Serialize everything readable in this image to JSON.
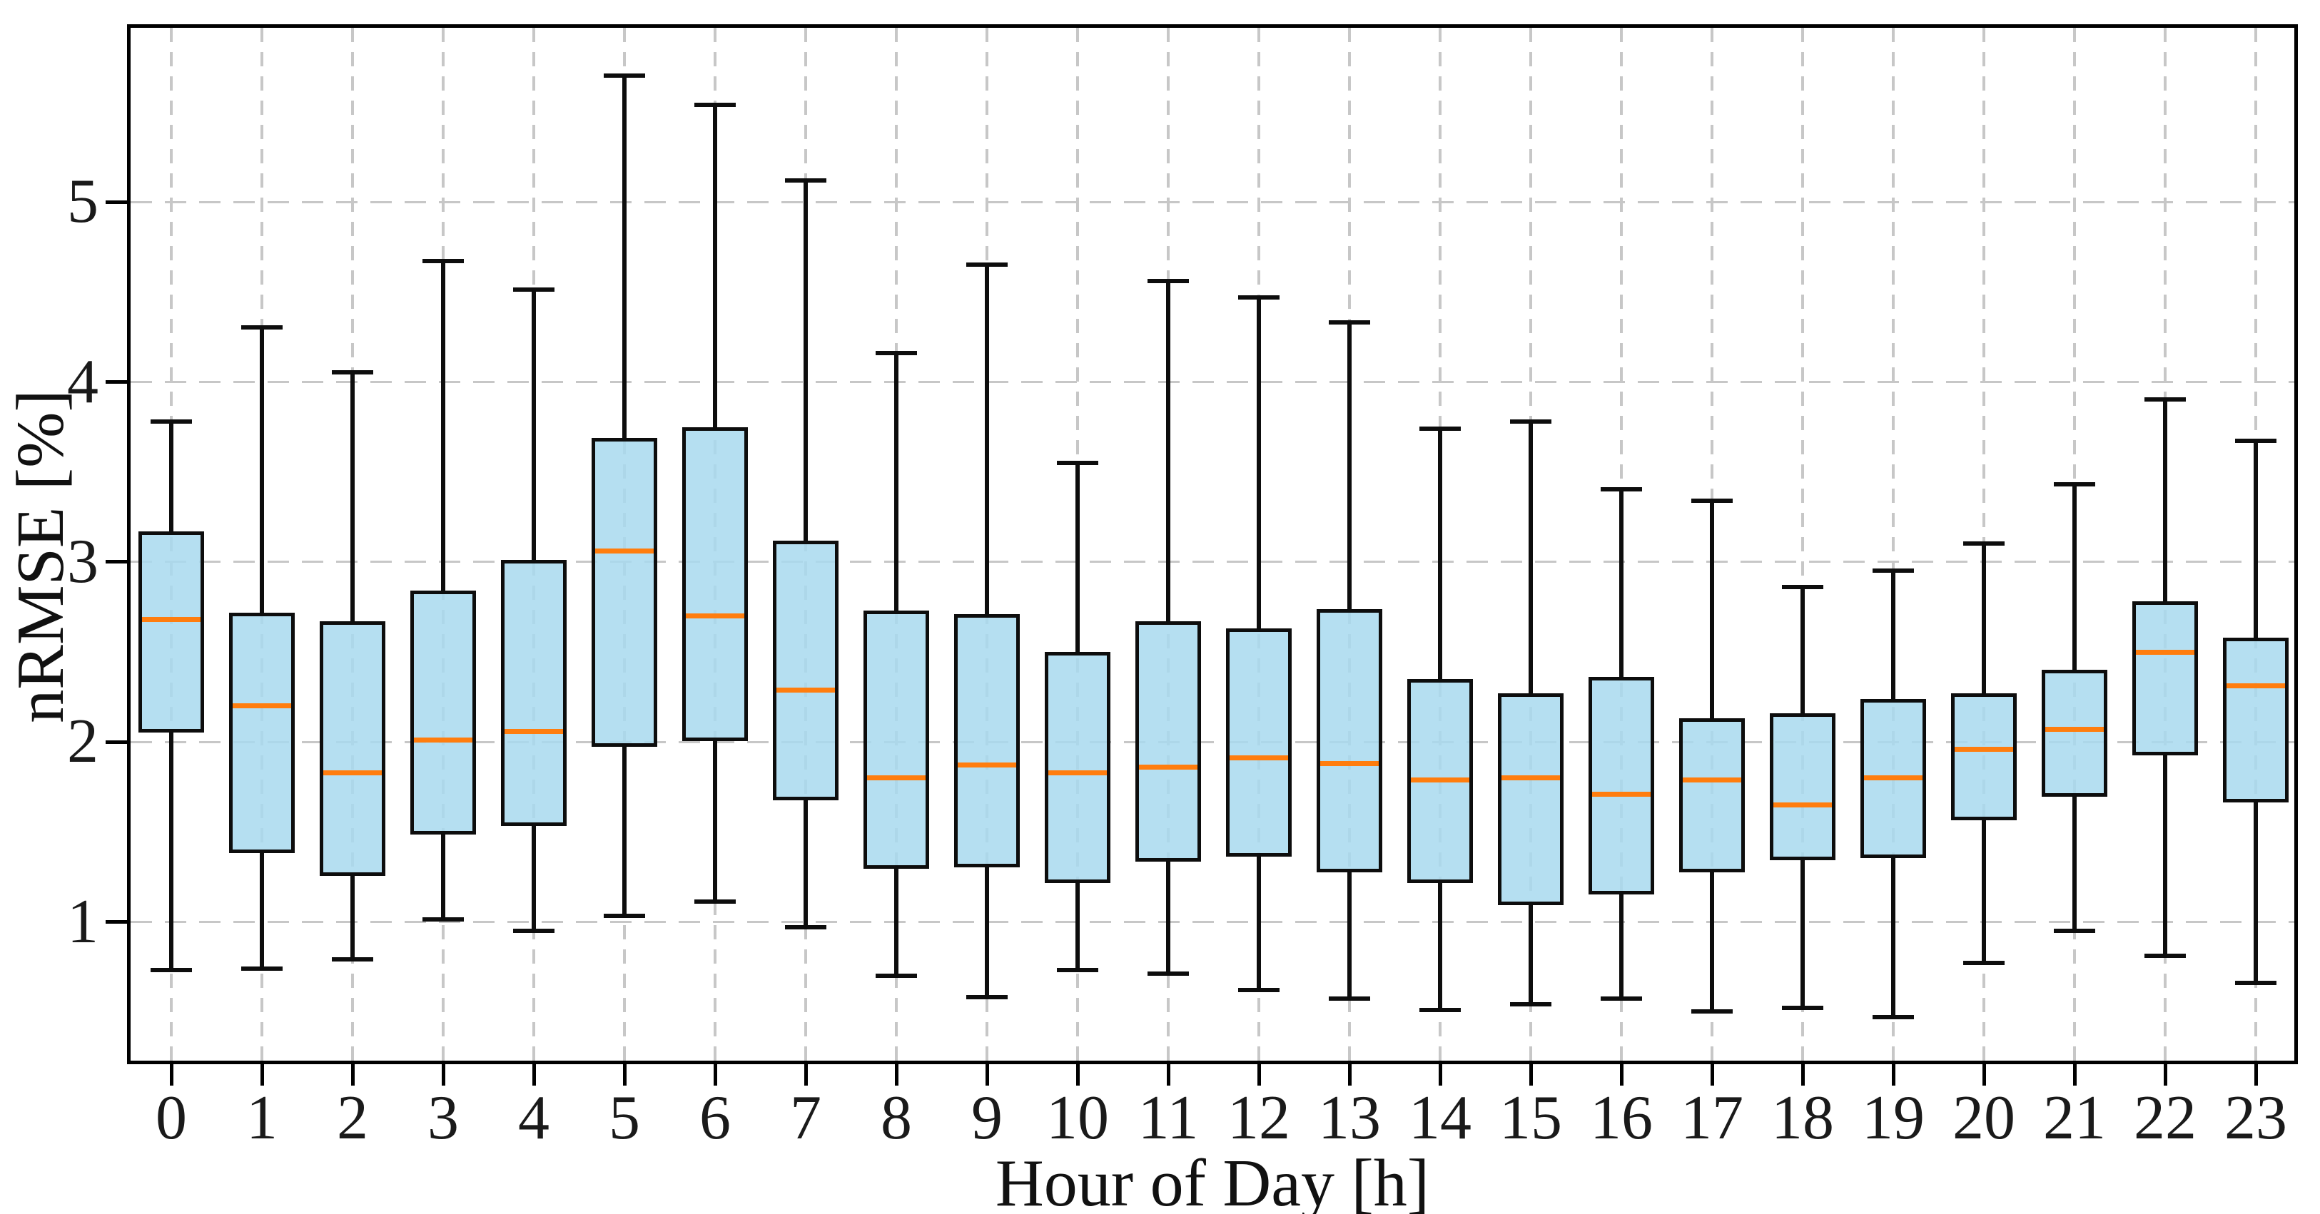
{
  "chart_data": {
    "type": "box",
    "title": "",
    "xlabel": "Hour of Day [h]",
    "ylabel": "nRMSE [%]",
    "categories": [
      "0",
      "1",
      "2",
      "3",
      "4",
      "5",
      "6",
      "7",
      "8",
      "9",
      "10",
      "11",
      "12",
      "13",
      "14",
      "15",
      "16",
      "17",
      "18",
      "19",
      "20",
      "21",
      "22",
      "23"
    ],
    "y_ticks": [
      "1",
      "2",
      "3",
      "4",
      "5"
    ],
    "ylim": [
      0.23,
      5.97
    ],
    "grid": true,
    "legend": false,
    "boxes": [
      {
        "hour": "0",
        "whislo": 0.73,
        "q1": 2.06,
        "med": 2.68,
        "q3": 3.16,
        "whishi": 3.78
      },
      {
        "hour": "1",
        "whislo": 0.74,
        "q1": 1.39,
        "med": 2.2,
        "q3": 2.71,
        "whishi": 4.3
      },
      {
        "hour": "2",
        "whislo": 0.79,
        "q1": 1.26,
        "med": 1.83,
        "q3": 2.66,
        "whishi": 4.05
      },
      {
        "hour": "3",
        "whislo": 1.01,
        "q1": 1.49,
        "med": 2.01,
        "q3": 2.83,
        "whishi": 4.67
      },
      {
        "hour": "4",
        "whislo": 0.95,
        "q1": 1.54,
        "med": 2.06,
        "q3": 3.0,
        "whishi": 4.51
      },
      {
        "hour": "5",
        "whislo": 1.03,
        "q1": 1.98,
        "med": 3.06,
        "q3": 3.68,
        "whishi": 5.7
      },
      {
        "hour": "6",
        "whislo": 1.11,
        "q1": 2.01,
        "med": 2.7,
        "q3": 3.74,
        "whishi": 5.54
      },
      {
        "hour": "7",
        "whislo": 0.97,
        "q1": 1.68,
        "med": 2.29,
        "q3": 3.11,
        "whishi": 5.12
      },
      {
        "hour": "8",
        "whislo": 0.7,
        "q1": 1.3,
        "med": 1.8,
        "q3": 2.72,
        "whishi": 4.16
      },
      {
        "hour": "9",
        "whislo": 0.58,
        "q1": 1.31,
        "med": 1.87,
        "q3": 2.7,
        "whishi": 4.65
      },
      {
        "hour": "10",
        "whislo": 0.73,
        "q1": 1.22,
        "med": 1.83,
        "q3": 2.49,
        "whishi": 3.55
      },
      {
        "hour": "11",
        "whislo": 0.71,
        "q1": 1.34,
        "med": 1.86,
        "q3": 2.66,
        "whishi": 4.56
      },
      {
        "hour": "12",
        "whislo": 0.62,
        "q1": 1.37,
        "med": 1.91,
        "q3": 2.62,
        "whishi": 4.47
      },
      {
        "hour": "13",
        "whislo": 0.57,
        "q1": 1.28,
        "med": 1.88,
        "q3": 2.73,
        "whishi": 4.33
      },
      {
        "hour": "14",
        "whislo": 0.51,
        "q1": 1.22,
        "med": 1.79,
        "q3": 2.34,
        "whishi": 3.74
      },
      {
        "hour": "15",
        "whislo": 0.54,
        "q1": 1.1,
        "med": 1.8,
        "q3": 2.26,
        "whishi": 3.78
      },
      {
        "hour": "16",
        "whislo": 0.57,
        "q1": 1.16,
        "med": 1.71,
        "q3": 2.35,
        "whishi": 3.4
      },
      {
        "hour": "17",
        "whislo": 0.5,
        "q1": 1.28,
        "med": 1.79,
        "q3": 2.12,
        "whishi": 3.34
      },
      {
        "hour": "18",
        "whislo": 0.52,
        "q1": 1.35,
        "med": 1.65,
        "q3": 2.15,
        "whishi": 2.86
      },
      {
        "hour": "19",
        "whislo": 0.47,
        "q1": 1.36,
        "med": 1.8,
        "q3": 2.23,
        "whishi": 2.95
      },
      {
        "hour": "20",
        "whislo": 0.77,
        "q1": 1.57,
        "med": 1.96,
        "q3": 2.26,
        "whishi": 3.1
      },
      {
        "hour": "21",
        "whislo": 0.95,
        "q1": 1.7,
        "med": 2.07,
        "q3": 2.39,
        "whishi": 3.43
      },
      {
        "hour": "22",
        "whislo": 0.81,
        "q1": 1.93,
        "med": 2.5,
        "q3": 2.77,
        "whishi": 3.9
      },
      {
        "hour": "23",
        "whislo": 0.66,
        "q1": 1.67,
        "med": 2.31,
        "q3": 2.57,
        "whishi": 3.67
      }
    ],
    "colors": {
      "box_fill": "#aedcef",
      "box_edge": "#0d0d0d",
      "median": "#ff7d0e",
      "whisker": "#0d0d0d",
      "grid": "#c7c7c7",
      "background": "#ffffff"
    }
  }
}
